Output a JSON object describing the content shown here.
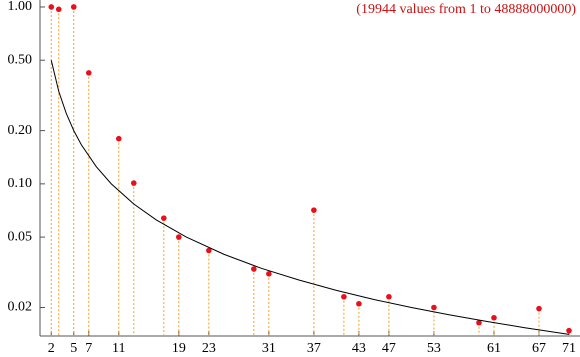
{
  "chart_data": {
    "type": "scatter",
    "annotation": "(19944 values from  1 to  48888000000)",
    "annotation_color": "#cc1111",
    "log_y": true,
    "grid": false,
    "xlim": [
      0.5,
      71
    ],
    "ylim": [
      0.0138,
      1.095
    ],
    "xticks": [
      2,
      5,
      7,
      11,
      19,
      23,
      31,
      37,
      43,
      47,
      53,
      61,
      67,
      71
    ],
    "yticks": [
      {
        "value": 1,
        "label": "1.00"
      },
      {
        "value": 0.5,
        "label": "0.50"
      },
      {
        "value": 0.2,
        "label": "0.20"
      },
      {
        "value": 0.1,
        "label": "0.10"
      },
      0.05,
      0.02
    ],
    "series": [
      {
        "color": "#e8101a",
        "stem_color": "#f0a020",
        "x": [
          2,
          3,
          5,
          7,
          11,
          13,
          17,
          19,
          23,
          29,
          31,
          37,
          41,
          43,
          47,
          53,
          59,
          61,
          67,
          71
        ],
        "values": [
          1.0,
          0.97,
          1.0,
          0.424,
          0.18,
          0.101,
          0.064,
          0.05,
          0.042,
          0.033,
          0.031,
          0.071,
          0.023,
          0.021,
          0.023,
          0.02,
          0.0164,
          0.0175,
          0.0197,
          0.0148
        ]
      },
      {
        "type": "line",
        "color": "#000000",
        "x": [
          2,
          3,
          4,
          5,
          6,
          8,
          10,
          13,
          16,
          20,
          25,
          30,
          35,
          40,
          45,
          50,
          55,
          60,
          65,
          71
        ],
        "values": [
          0.5,
          0.3333,
          0.25,
          0.2,
          0.1667,
          0.125,
          0.1,
          0.0769,
          0.0625,
          0.05,
          0.04,
          0.0333,
          0.0286,
          0.025,
          0.0222,
          0.02,
          0.0182,
          0.0167,
          0.0154,
          0.0141
        ]
      }
    ]
  }
}
